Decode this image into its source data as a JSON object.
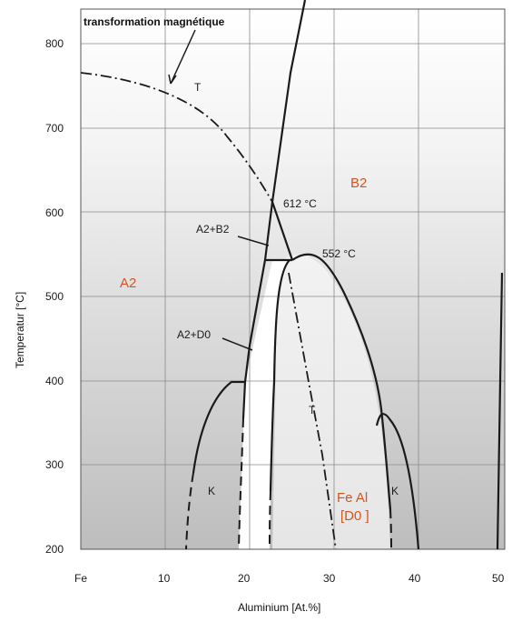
{
  "axes": {
    "x_label": "Aluminium [At.%]",
    "y_label": "Temperatur [°C]",
    "x_ticks": [
      "Fe",
      "10",
      "20",
      "30",
      "40",
      "50"
    ],
    "y_ticks": [
      "800",
      "700",
      "600",
      "500",
      "400",
      "300",
      "200"
    ]
  },
  "annotations": {
    "magnetic_note": "transformation magnétique",
    "tc_upper": "T",
    "tc_lower": "T",
    "label_a2b2": "A2+B2",
    "label_a2d0": "A2+D0",
    "temp_612": "612 °C",
    "temp_552": "552 °C"
  },
  "phases": {
    "b2": "B2",
    "a2": "A2",
    "k_left": "K",
    "k_right": "K",
    "fe_al": "Fe Al",
    "d0": "[D0 ]"
  },
  "colors": {
    "phase_label": "#d2541e",
    "line": "#1a1a1a",
    "grid": "#8a8a8a"
  },
  "chart_data": {
    "type": "phase_diagram",
    "x_unit": "At.% Al",
    "y_unit": "°C",
    "xlim": [
      0,
      50
    ],
    "ylim": [
      200,
      820
    ],
    "grid": true,
    "special_points": [
      {
        "label": "612 °C",
        "x": 23.3,
        "y": 612
      },
      {
        "label": "552 °C",
        "x": 26.5,
        "y": 552
      }
    ]
  }
}
